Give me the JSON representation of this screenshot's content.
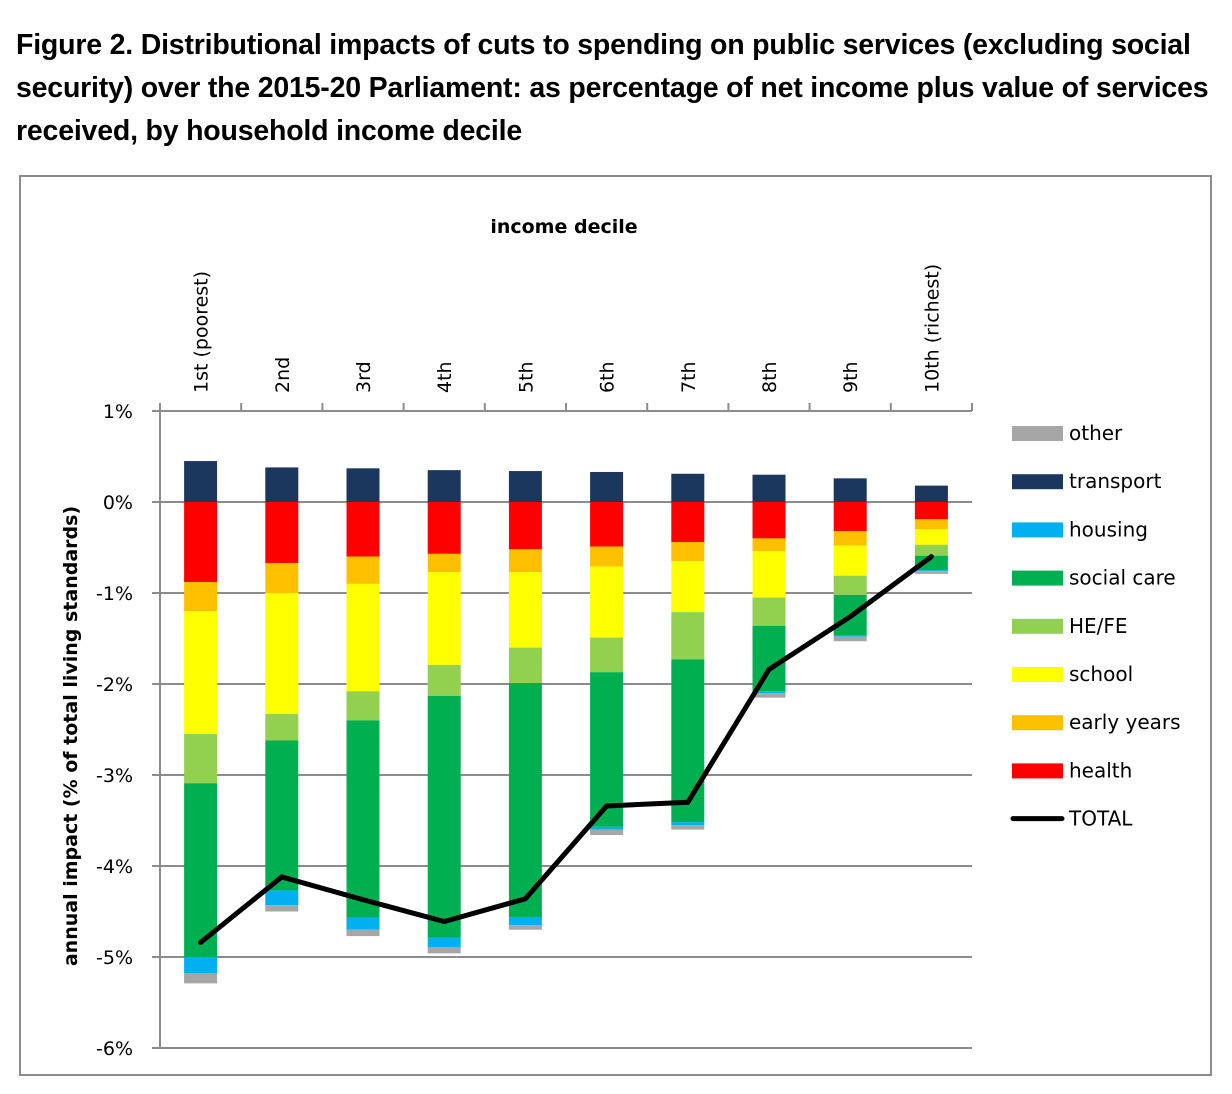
{
  "title": "Figure 2. Distributional impacts of cuts to spending on public services (excluding social security) over the 2015-20 Parliament: as percentage of net income plus value of services received, by household income decile",
  "chart_data": {
    "type": "bar",
    "stacked": true,
    "title": "",
    "xlabel": "income decile",
    "xlabel_position": "top",
    "ylabel": "annual impact (% of total living standards)",
    "ylim": [
      -6,
      1
    ],
    "yticks": [
      1,
      0,
      -1,
      -2,
      -3,
      -4,
      -5,
      -6
    ],
    "ytick_labels": [
      "1%",
      "0%",
      "-1%",
      "-2%",
      "-3%",
      "-4%",
      "-5%",
      "-6%"
    ],
    "grid": true,
    "legend_position": "right",
    "categories": [
      "1st (poorest)",
      "2nd",
      "3rd",
      "4th",
      "5th",
      "6th",
      "7th",
      "8th",
      "9th",
      "10th (richest)"
    ],
    "series": [
      {
        "name": "other",
        "color": "#a6a6a6",
        "values": [
          -0.11,
          -0.07,
          -0.07,
          -0.07,
          -0.05,
          -0.06,
          -0.05,
          -0.05,
          -0.05,
          -0.03
        ]
      },
      {
        "name": "transport",
        "color": "#1b375e",
        "values": [
          0.45,
          0.38,
          0.37,
          0.35,
          0.34,
          0.33,
          0.31,
          0.3,
          0.26,
          0.18
        ]
      },
      {
        "name": "housing",
        "color": "#00b0f0",
        "values": [
          -0.18,
          -0.16,
          -0.13,
          -0.1,
          -0.09,
          -0.03,
          -0.03,
          -0.02,
          -0.01,
          -0.01
        ]
      },
      {
        "name": "social care",
        "color": "#00b050",
        "values": [
          -1.91,
          -1.65,
          -2.17,
          -2.66,
          -2.57,
          -1.7,
          -1.79,
          -0.72,
          -0.45,
          -0.16
        ]
      },
      {
        "name": "HE/FE",
        "color": "#92d050",
        "values": [
          -0.54,
          -0.29,
          -0.32,
          -0.34,
          -0.39,
          -0.38,
          -0.52,
          -0.31,
          -0.21,
          -0.12
        ]
      },
      {
        "name": "school",
        "color": "#ffff00",
        "values": [
          -1.35,
          -1.33,
          -1.18,
          -1.02,
          -0.83,
          -0.78,
          -0.56,
          -0.51,
          -0.33,
          -0.17
        ]
      },
      {
        "name": "early years",
        "color": "#ffc000",
        "values": [
          -0.32,
          -0.33,
          -0.3,
          -0.2,
          -0.25,
          -0.22,
          -0.21,
          -0.14,
          -0.16,
          -0.11
        ]
      },
      {
        "name": "health",
        "color": "#ff0000",
        "values": [
          -0.88,
          -0.67,
          -0.6,
          -0.57,
          -0.52,
          -0.49,
          -0.44,
          -0.4,
          -0.32,
          -0.19
        ]
      }
    ],
    "stack_order_negative": [
      "health",
      "early years",
      "school",
      "HE/FE",
      "social care",
      "housing",
      "other"
    ],
    "line_series": {
      "name": "TOTAL",
      "color": "#000000",
      "values": [
        -4.84,
        -4.12,
        -4.37,
        -4.61,
        -4.36,
        -3.34,
        -3.3,
        -1.84,
        -1.26,
        -0.6
      ]
    },
    "legend_order": [
      "other",
      "transport",
      "housing",
      "social care",
      "HE/FE",
      "school",
      "early years",
      "health",
      "TOTAL"
    ]
  }
}
